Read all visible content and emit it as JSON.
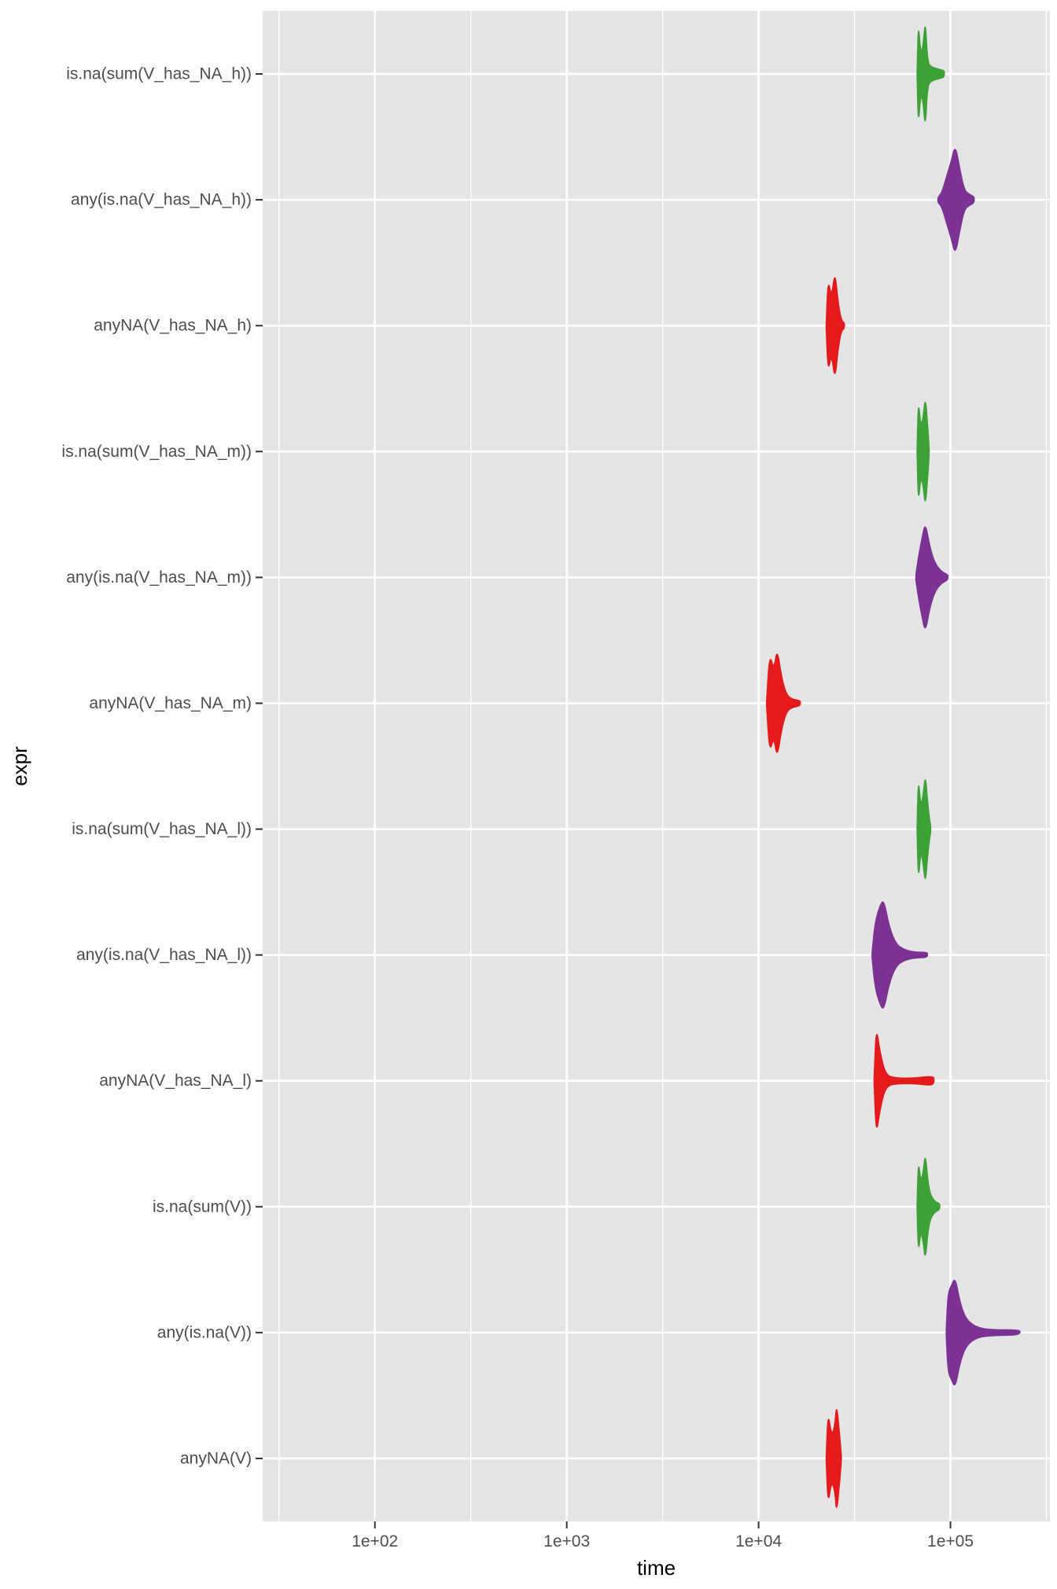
{
  "chart_data": {
    "type": "violin",
    "title": "",
    "xlabel": "time",
    "ylabel": "expr",
    "x_scale": "log10",
    "xlim": [
      26,
      330000
    ],
    "x_ticks": [
      {
        "value": 100,
        "label": "1e+02"
      },
      {
        "value": 1000,
        "label": "1e+03"
      },
      {
        "value": 10000,
        "label": "1e+04"
      },
      {
        "value": 100000,
        "label": "1e+05"
      }
    ],
    "colors": {
      "anyNA": "#e41a1c",
      "any_is_na": "#7b3294",
      "is_na_sum": "#3ca236",
      "panel": "#e5e5e5",
      "grid": "#ffffff"
    },
    "series": [
      {
        "name": "is.na(sum(V_has_NA_h))",
        "group": "is_na_sum",
        "profile": [
          [
            67000,
            0.05
          ],
          [
            68000,
            0.95
          ],
          [
            70000,
            0.35
          ],
          [
            72000,
            0.5
          ],
          [
            74000,
            1.0
          ],
          [
            76000,
            0.2
          ],
          [
            80000,
            0.12
          ],
          [
            88000,
            0.08
          ],
          [
            93000,
            0.06
          ]
        ]
      },
      {
        "name": "any(is.na(V_has_NA_h))",
        "group": "any_is_na",
        "profile": [
          [
            86000,
            0.05
          ],
          [
            90000,
            0.12
          ],
          [
            96000,
            0.45
          ],
          [
            101000,
            0.7
          ],
          [
            106000,
            1.0
          ],
          [
            112000,
            0.55
          ],
          [
            118000,
            0.18
          ],
          [
            125000,
            0.1
          ],
          [
            133000,
            0.06
          ]
        ]
      },
      {
        "name": "anyNA(V_has_NA_h)",
        "group": "anyNA",
        "profile": [
          [
            22500,
            0.05
          ],
          [
            23000,
            0.85
          ],
          [
            24000,
            0.5
          ],
          [
            25000,
            1.0
          ],
          [
            26000,
            0.4
          ],
          [
            27000,
            0.1
          ],
          [
            28000,
            0.05
          ]
        ]
      },
      {
        "name": "is.na(sum(V_has_NA_m))",
        "group": "is_na_sum",
        "profile": [
          [
            67000,
            0.05
          ],
          [
            68000,
            0.95
          ],
          [
            70000,
            0.45
          ],
          [
            72000,
            0.6
          ],
          [
            74000,
            1.0
          ],
          [
            76000,
            0.5
          ],
          [
            77500,
            0.05
          ]
        ]
      },
      {
        "name": "any(is.na(V_has_NA_m))",
        "group": "any_is_na",
        "profile": [
          [
            66000,
            0.05
          ],
          [
            68000,
            0.35
          ],
          [
            71000,
            0.7
          ],
          [
            74000,
            1.0
          ],
          [
            78000,
            0.55
          ],
          [
            83000,
            0.25
          ],
          [
            90000,
            0.1
          ],
          [
            97000,
            0.05
          ]
        ]
      },
      {
        "name": "anyNA(V_has_NA_m)",
        "group": "anyNA",
        "profile": [
          [
            11000,
            0.05
          ],
          [
            11400,
            0.9
          ],
          [
            12000,
            0.6
          ],
          [
            12500,
            1.0
          ],
          [
            13200,
            0.45
          ],
          [
            14000,
            0.15
          ],
          [
            15000,
            0.07
          ],
          [
            16500,
            0.05
          ]
        ]
      },
      {
        "name": "is.na(sum(V_has_NA_l))",
        "group": "is_na_sum",
        "profile": [
          [
            67000,
            0.05
          ],
          [
            68000,
            0.95
          ],
          [
            70000,
            0.4
          ],
          [
            72000,
            0.6
          ],
          [
            74000,
            1.0
          ],
          [
            76000,
            0.5
          ],
          [
            78000,
            0.15
          ],
          [
            79000,
            0.05
          ]
        ]
      },
      {
        "name": "any(is.na(V_has_NA_l))",
        "group": "any_is_na",
        "profile": [
          [
            39000,
            0.05
          ],
          [
            40500,
            0.6
          ],
          [
            43000,
            0.9
          ],
          [
            45000,
            1.0
          ],
          [
            48000,
            0.5
          ],
          [
            52000,
            0.2
          ],
          [
            57000,
            0.1
          ],
          [
            65000,
            0.05
          ],
          [
            76000,
            0.05
          ]
        ]
      },
      {
        "name": "anyNA(V_has_NA_l)",
        "group": "anyNA",
        "profile": [
          [
            40000,
            0.05
          ],
          [
            41000,
            1.0
          ],
          [
            43000,
            0.5
          ],
          [
            46000,
            0.1
          ],
          [
            52000,
            0.05
          ],
          [
            65000,
            0.05
          ],
          [
            72000,
            0.07
          ],
          [
            82000,
            0.08
          ]
        ]
      },
      {
        "name": "is.na(sum(V))",
        "group": "is_na_sum",
        "profile": [
          [
            67000,
            0.05
          ],
          [
            68000,
            0.85
          ],
          [
            70000,
            0.45
          ],
          [
            72000,
            0.6
          ],
          [
            74000,
            1.0
          ],
          [
            77000,
            0.3
          ],
          [
            82000,
            0.1
          ],
          [
            88000,
            0.06
          ]
        ]
      },
      {
        "name": "any(is.na(V))",
        "group": "any_is_na",
        "profile": [
          [
            95000,
            0.05
          ],
          [
            97000,
            0.7
          ],
          [
            101000,
            0.85
          ],
          [
            106000,
            1.0
          ],
          [
            112000,
            0.55
          ],
          [
            120000,
            0.25
          ],
          [
            135000,
            0.1
          ],
          [
            160000,
            0.05
          ],
          [
            230000,
            0.05
          ]
        ]
      },
      {
        "name": "anyNA(V)",
        "group": "anyNA",
        "profile": [
          [
            22500,
            0.05
          ],
          [
            23000,
            0.85
          ],
          [
            24000,
            0.4
          ],
          [
            25000,
            0.6
          ],
          [
            25500,
            1.0
          ],
          [
            26500,
            0.4
          ],
          [
            27000,
            0.05
          ]
        ]
      }
    ]
  }
}
